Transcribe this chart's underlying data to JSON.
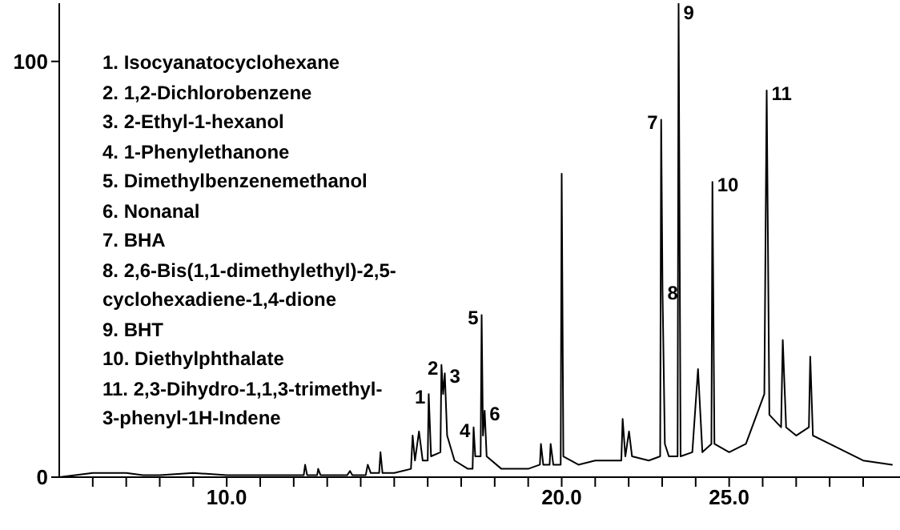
{
  "chart_data": {
    "type": "line",
    "color": "#000000",
    "line_style": "solid",
    "marker": "none",
    "xlim": [
      5,
      30.1
    ],
    "ylim": [
      0,
      114
    ],
    "xticks": [
      {
        "value": 6,
        "label": null
      },
      {
        "value": 7,
        "label": null
      },
      {
        "value": 8,
        "label": null
      },
      {
        "value": 9,
        "label": null
      },
      {
        "value": 10,
        "label": "10.0"
      },
      {
        "value": 11,
        "label": null
      },
      {
        "value": 12,
        "label": null
      },
      {
        "value": 13,
        "label": null
      },
      {
        "value": 14,
        "label": null
      },
      {
        "value": 15,
        "label": null
      },
      {
        "value": 16,
        "label": null
      },
      {
        "value": 17,
        "label": null
      },
      {
        "value": 18,
        "label": null
      },
      {
        "value": 19,
        "label": null
      },
      {
        "value": 20,
        "label": "20.0"
      },
      {
        "value": 21,
        "label": null
      },
      {
        "value": 22,
        "label": null
      },
      {
        "value": 23,
        "label": null
      },
      {
        "value": 24,
        "label": null
      },
      {
        "value": 25,
        "label": "25.0"
      },
      {
        "value": 26,
        "label": null
      },
      {
        "value": 27,
        "label": null
      },
      {
        "value": 28,
        "label": null
      },
      {
        "value": 29,
        "label": null
      }
    ],
    "yticks": [
      0,
      100
    ],
    "x": [
      5,
      6,
      7,
      7.5,
      8,
      9,
      10,
      11,
      12,
      12.3,
      12.34,
      12.4,
      12.7,
      12.73,
      12.8,
      13.6,
      13.68,
      13.75,
      14.15,
      14.21,
      14.3,
      14.55,
      14.59,
      14.65,
      15.0,
      15.5,
      15.55,
      15.62,
      15.74,
      15.85,
      16.0,
      16.03,
      16.1,
      16.38,
      16.41,
      16.46,
      16.51,
      16.58,
      16.8,
      17.2,
      17.34,
      17.37,
      17.42,
      17.58,
      17.61,
      17.65,
      17.7,
      17.76,
      18.2,
      19.0,
      19.35,
      19.38,
      19.45,
      19.64,
      19.67,
      19.75,
      19.97,
      20.0,
      20.05,
      20.5,
      21.0,
      21.78,
      21.82,
      21.9,
      22.01,
      22.1,
      22.6,
      22.94,
      22.97,
      23.01,
      23.08,
      23.2,
      23.46,
      23.49,
      23.55,
      23.9,
      24.07,
      24.2,
      24.47,
      24.5,
      24.56,
      25.0,
      25.5,
      26.05,
      26.12,
      26.2,
      26.55,
      26.6,
      26.7,
      27.0,
      27.38,
      27.42,
      27.5,
      28.0,
      29.0,
      29.86
    ],
    "values": [
      0,
      1,
      1,
      0.5,
      0.5,
      1,
      0.5,
      0.5,
      0.5,
      0.5,
      3,
      0.5,
      0.5,
      2,
      0.5,
      0.5,
      1.5,
      0.5,
      0.5,
      3,
      1,
      1,
      6,
      1,
      1,
      2,
      10,
      4,
      11,
      4,
      4,
      20,
      5,
      6,
      27,
      20,
      25,
      10,
      4,
      2,
      2,
      12,
      5,
      5,
      39,
      10,
      16,
      5,
      2,
      2,
      3,
      8,
      3,
      3,
      8,
      3,
      3,
      73,
      5,
      3,
      4,
      4,
      14,
      5,
      11,
      5,
      4,
      5,
      86,
      45,
      8,
      5,
      5,
      114,
      5,
      6,
      26,
      6,
      8,
      71,
      8,
      6,
      8,
      20,
      93,
      15,
      12,
      33,
      12,
      10,
      12,
      29,
      10,
      8,
      4,
      3
    ],
    "annotations": [
      "1. Isocyanatocyclohexane",
      "2. 1,2-Dichlorobenzene",
      "3. 2-Ethyl-1-hexanol",
      "4. 1-Phenylethanone",
      "5. Dimethylbenzenemethanol",
      "6. Nonanal",
      "7. BHA",
      "8. 2,6-Bis(1,1-dimethylethyl)-2,5-",
      "cyclohexadiene-1,4-dione",
      "9. BHT",
      "10. Diethylphthalate",
      "11. 2,3-Dihydro-1,1,3-trimethyl-",
      "3-phenyl-1H-Indene",
      {
        "text": "1",
        "x": 16.03,
        "y": 20
      },
      {
        "text": "2",
        "x": 16.41,
        "y": 27
      },
      {
        "text": "3",
        "x": 16.51,
        "y": 25
      },
      {
        "text": "4",
        "x": 17.37,
        "y": 12
      },
      {
        "text": "5",
        "x": 17.61,
        "y": 39
      },
      {
        "text": "6",
        "x": 17.7,
        "y": 16
      },
      {
        "text": "7",
        "x": 22.97,
        "y": 86
      },
      {
        "text": "8",
        "x": 23.01,
        "y": 45
      },
      {
        "text": "9",
        "x": 23.49,
        "y": 114
      },
      {
        "text": "10",
        "x": 24.5,
        "y": 71
      },
      {
        "text": "11",
        "x": 26.12,
        "y": 93
      }
    ]
  }
}
